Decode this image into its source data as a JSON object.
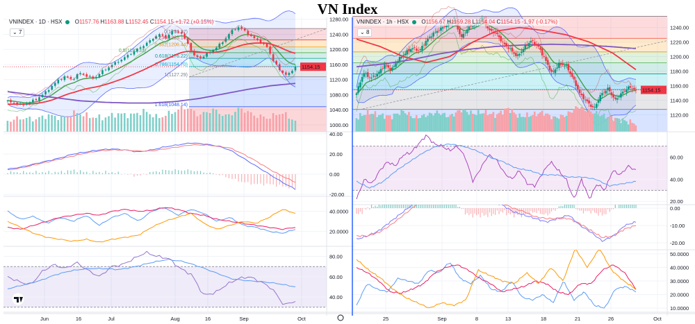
{
  "title": "VN Index",
  "colors": {
    "up": "#089981",
    "down": "#f23645",
    "vol_up": "#7fcfc9",
    "vol_down": "#f7a1a8",
    "ma_fast": "#43a047",
    "ma_mid": "#f23645",
    "ma_slow": "#7e57c2",
    "bb": "#5b6bff",
    "price_tag": "#f23645"
  },
  "chart_data": [
    {
      "type": "candlestick",
      "symbol": "VNINDEX · 1D · HSX",
      "ohlc": {
        "o": "1157.76",
        "h": "1163.88",
        "l": "1152.45",
        "c": "1154.15",
        "chg": "+1.72 (+0.15%)"
      },
      "o_label": "O",
      "h_label": "H",
      "l_label": "L",
      "c_label": "C",
      "indicators_collapsed": "7",
      "last_price": "1154.15",
      "y_ticks": [
        "1280.00",
        "1240.00",
        "1200.00",
        "1160.00",
        "1120.00",
        "1080.00",
        "1040.00",
        "1000.00"
      ],
      "y_tick_values": [
        1280,
        1240,
        1200,
        1160,
        1120,
        1080,
        1040,
        1000
      ],
      "ylim": [
        1000,
        1285
      ],
      "x_ticks": [
        "Jun",
        "16",
        "Jul",
        "Aug",
        "16",
        "Sep",
        "Oct"
      ],
      "close_keys": [
        1062,
        1058,
        1052,
        1060,
        1068,
        1082,
        1100,
        1118,
        1128,
        1120,
        1138,
        1130,
        1122,
        1140,
        1152,
        1165,
        1175,
        1188,
        1200,
        1212,
        1226,
        1240,
        1232,
        1250,
        1246,
        1218,
        1180,
        1178,
        1192,
        1205,
        1222,
        1246,
        1260,
        1248,
        1232,
        1222,
        1208,
        1168,
        1140,
        1132,
        1154
      ],
      "slow_ma_keys": [
        1088,
        1080,
        1072,
        1064,
        1060,
        1058,
        1058,
        1062,
        1070,
        1082,
        1094,
        1104,
        1110
      ],
      "volume_keys": [
        0.4,
        0.5,
        0.45,
        0.6,
        0.5,
        0.7,
        0.55,
        0.5,
        0.65,
        0.6,
        0.75,
        0.5,
        0.7,
        0.9,
        0.6,
        0.8,
        0.55,
        0.85,
        0.6,
        0.5,
        0.7,
        0.4
      ],
      "fib_levels": [
        {
          "ratio": 0,
          "price": 1255.37,
          "label": "0(1255.37)"
        },
        {
          "ratio": 0.236,
          "price": 1225.14,
          "label": "0.236(1225.14)"
        },
        {
          "ratio": 0.382,
          "price": 1206.44,
          "label": "0.382(1206.44)"
        },
        {
          "ratio": 0.5,
          "price": 1191.33,
          "label": "0.5(1191.33)"
        },
        {
          "ratio": 0.618,
          "price": 1176.22,
          "label": "0.618(1176.22)"
        },
        {
          "ratio": 0.786,
          "price": 1154.7,
          "label": "0.786(1154.70)"
        },
        {
          "ratio": 1,
          "price": 1127.29,
          "label": "1(1127.29)"
        },
        {
          "ratio": 1.618,
          "price": 1048.14,
          "label": "1.618(1048.14)"
        }
      ],
      "panes": [
        {
          "name": "macd",
          "ticks": [
            "40.00",
            "20.00",
            "0.00",
            "-20.00"
          ],
          "tick_values": [
            40,
            20,
            0,
            -20
          ],
          "ylim": [
            -22,
            42
          ],
          "series": [
            {
              "name": "macd",
              "color": "#5b6bff",
              "keys": [
                5,
                7,
                10,
                13,
                16,
                20,
                22,
                24,
                25,
                24,
                22,
                24,
                27,
                29,
                31,
                30,
                28,
                24,
                16,
                8,
                0,
                -8,
                -15
              ]
            },
            {
              "name": "signal",
              "color": "#f77c80",
              "keys": [
                4,
                6,
                9,
                12,
                15,
                18,
                21,
                23,
                24,
                24,
                23,
                23,
                25,
                27,
                29,
                29,
                28,
                26,
                20,
                13,
                5,
                -2,
                -8
              ]
            }
          ],
          "histogram": true
        },
        {
          "name": "adx",
          "ticks": [
            "40.0000",
            "20.0000"
          ],
          "tick_values": [
            40,
            20
          ],
          "ylim": [
            5,
            55
          ],
          "series": [
            {
              "name": "+di",
              "color": "#5b9cf6",
              "keys": [
                40,
                32,
                35,
                28,
                34,
                30,
                36,
                26,
                34,
                38,
                30,
                40,
                44,
                36,
                42,
                38,
                30,
                34,
                26,
                24,
                20,
                18,
                22
              ]
            },
            {
              "name": "-di",
              "color": "#e91e63",
              "keys": [
                24,
                22,
                26,
                30,
                34,
                36,
                38,
                36,
                40,
                42,
                40,
                41,
                44,
                42,
                38,
                36,
                32,
                30,
                28,
                26,
                24,
                22,
                24
              ]
            },
            {
              "name": "adx",
              "color": "#ff9800",
              "keys": [
                30,
                24,
                18,
                14,
                12,
                10,
                12,
                9,
                12,
                14,
                16,
                24,
                30,
                34,
                38,
                28,
                22,
                26,
                30,
                28,
                34,
                42,
                38
              ]
            }
          ]
        },
        {
          "name": "rsi",
          "ticks": [
            "80.00",
            "60.00",
            "40.00"
          ],
          "tick_values": [
            80,
            60,
            40
          ],
          "ylim": [
            25,
            90
          ],
          "band": [
            70,
            30
          ],
          "series": [
            {
              "name": "rsi",
              "color": "#9575cd",
              "keys": [
                60,
                55,
                52,
                65,
                72,
                68,
                74,
                66,
                60,
                70,
                72,
                78,
                84,
                80,
                78,
                68,
                62,
                42,
                44,
                52,
                58,
                60,
                55,
                48,
                32,
                36
              ]
            },
            {
              "name": "rsi-ma",
              "color": "#5b9cf6",
              "keys": [
                48,
                52,
                56,
                62,
                66,
                68,
                68,
                67,
                70,
                74,
                77,
                75,
                70,
                64,
                58,
                56,
                55,
                53,
                50
              ]
            }
          ]
        }
      ]
    },
    {
      "type": "candlestick",
      "symbol": "VNINDEX · 1h · HSX",
      "ohlc": {
        "o": "1156.67",
        "h": "1159.28",
        "l": "1154.04",
        "c": "1154.15",
        "chg": "-1.97 (-0.17%)"
      },
      "o_label": "O",
      "h_label": "H",
      "l_label": "L",
      "c_label": "C",
      "indicators_collapsed": "8",
      "last_price": "1154.15",
      "y_ticks": [
        "1240.00",
        "1220.00",
        "1200.00",
        "1180.00",
        "1160.00",
        "1140.00",
        "1120.00"
      ],
      "y_tick_values": [
        1240,
        1220,
        1200,
        1180,
        1160,
        1140,
        1120
      ],
      "ylim": [
        1106,
        1254
      ],
      "x_ticks": [
        "25",
        "Sep",
        "8",
        "13",
        "18",
        "21",
        "26",
        "Oct"
      ],
      "close_keys": [
        1150,
        1178,
        1170,
        1176,
        1188,
        1182,
        1196,
        1205,
        1212,
        1208,
        1222,
        1232,
        1238,
        1244,
        1250,
        1226,
        1240,
        1244,
        1252,
        1236,
        1232,
        1218,
        1210,
        1200,
        1212,
        1222,
        1214,
        1196,
        1176,
        1190,
        1188,
        1170,
        1148,
        1138,
        1128,
        1148,
        1156,
        1140,
        1150,
        1158,
        1154
      ],
      "slow_ma_keys": [
        1186,
        1190,
        1196,
        1204,
        1210,
        1214,
        1216,
        1217,
        1216,
        1214,
        1211
      ],
      "mid_ma_keys": [
        1224,
        1214,
        1200,
        1192,
        1200,
        1220,
        1235,
        1240,
        1236,
        1230,
        1220,
        1205,
        1182
      ],
      "volume_keys": [
        0.5,
        0.7,
        0.6,
        0.55,
        0.75,
        0.5,
        0.6,
        0.7,
        0.55,
        0.8,
        0.65,
        0.7,
        0.6,
        0.85,
        0.55,
        0.6,
        0.7,
        0.5,
        0.6,
        0.9,
        0.75,
        0.6,
        0.5,
        0.4,
        0.3
      ],
      "fib_levels": [
        {
          "ratio": 0,
          "price": 1255.37
        },
        {
          "ratio": 0.236,
          "price": 1225.14
        },
        {
          "ratio": 0.382,
          "price": 1206.44
        },
        {
          "ratio": 0.5,
          "price": 1191.33
        },
        {
          "ratio": 0.618,
          "price": 1176.22
        },
        {
          "ratio": 0.786,
          "price": 1154.7
        },
        {
          "ratio": 1,
          "price": 1127.29
        }
      ],
      "panes": [
        {
          "name": "rsi",
          "ticks": [
            "60.00",
            "40.00",
            "20.00"
          ],
          "tick_values": [
            60,
            40,
            20
          ],
          "ylim": [
            17,
            83
          ],
          "band": [
            70,
            30
          ],
          "series": [
            {
              "name": "rsi",
              "color": "#ab47bc",
              "keys": [
                22,
                40,
                36,
                48,
                56,
                52,
                62,
                64,
                72,
                80,
                72,
                70,
                66,
                70,
                60,
                38,
                50,
                62,
                58,
                46,
                40,
                48,
                36,
                34,
                46,
                56,
                48,
                40,
                22,
                40,
                22,
                36,
                30,
                48,
                44,
                52,
                48
              ]
            },
            {
              "name": "rsi-ma",
              "color": "#5b9cf6",
              "keys": [
                38,
                32,
                38,
                48,
                56,
                64,
                70,
                72,
                70,
                66,
                60,
                56,
                50,
                48,
                44,
                44,
                42,
                42,
                40,
                34,
                36,
                38
              ]
            }
          ]
        },
        {
          "name": "macd",
          "ticks": [
            "0.00",
            "-10.00",
            "-20.00"
          ],
          "tick_values": [
            0,
            -10,
            -20
          ],
          "ylim": [
            -24,
            2
          ],
          "series": [
            {
              "name": "macd",
              "color": "#7b7bff",
              "keys": [
                -18,
                -16,
                -13,
                -8,
                -3,
                2,
                8,
                14,
                20,
                22,
                14,
                6,
                4,
                2,
                -2,
                -4,
                -6,
                -8,
                -6,
                -4,
                -10,
                -14,
                -19,
                -16,
                -10,
                -8
              ]
            },
            {
              "name": "signal",
              "color": "#f77c80",
              "keys": [
                -16,
                -16,
                -14,
                -10,
                -5,
                0,
                6,
                12,
                18,
                21,
                16,
                8,
                6,
                3,
                0,
                -2,
                -5,
                -6,
                -6,
                -6,
                -9,
                -13,
                -17,
                -16,
                -12,
                -10
              ]
            }
          ],
          "histogram": true
        },
        {
          "name": "adx",
          "ticks": [
            "50.0000",
            "40.0000",
            "30.0000",
            "20.0000",
            "10.0000"
          ],
          "tick_values": [
            50,
            40,
            30,
            20,
            10
          ],
          "ylim": [
            7,
            53
          ],
          "series": [
            {
              "name": "+di",
              "color": "#5b9cf6",
              "keys": [
                12,
                28,
                24,
                22,
                32,
                30,
                28,
                38,
                36,
                44,
                32,
                28,
                34,
                24,
                22,
                30,
                18,
                16,
                20,
                14,
                30,
                16,
                22,
                12,
                10,
                24,
                26,
                22
              ]
            },
            {
              "name": "-di",
              "color": "#e91e63",
              "keys": [
                40,
                36,
                30,
                22,
                21,
                24,
                28,
                36,
                40,
                42,
                38,
                32,
                28,
                22,
                24,
                26,
                30,
                28,
                22,
                20,
                28,
                28,
                38,
                42,
                36,
                24
              ]
            },
            {
              "name": "adx",
              "color": "#ff9800",
              "keys": [
                46,
                38,
                32,
                24,
                18,
                14,
                10,
                14,
                12,
                16,
                38,
                34,
                30,
                28,
                36,
                28,
                40,
                30,
                54,
                40,
                54,
                38,
                30,
                24
              ]
            }
          ]
        }
      ]
    }
  ]
}
